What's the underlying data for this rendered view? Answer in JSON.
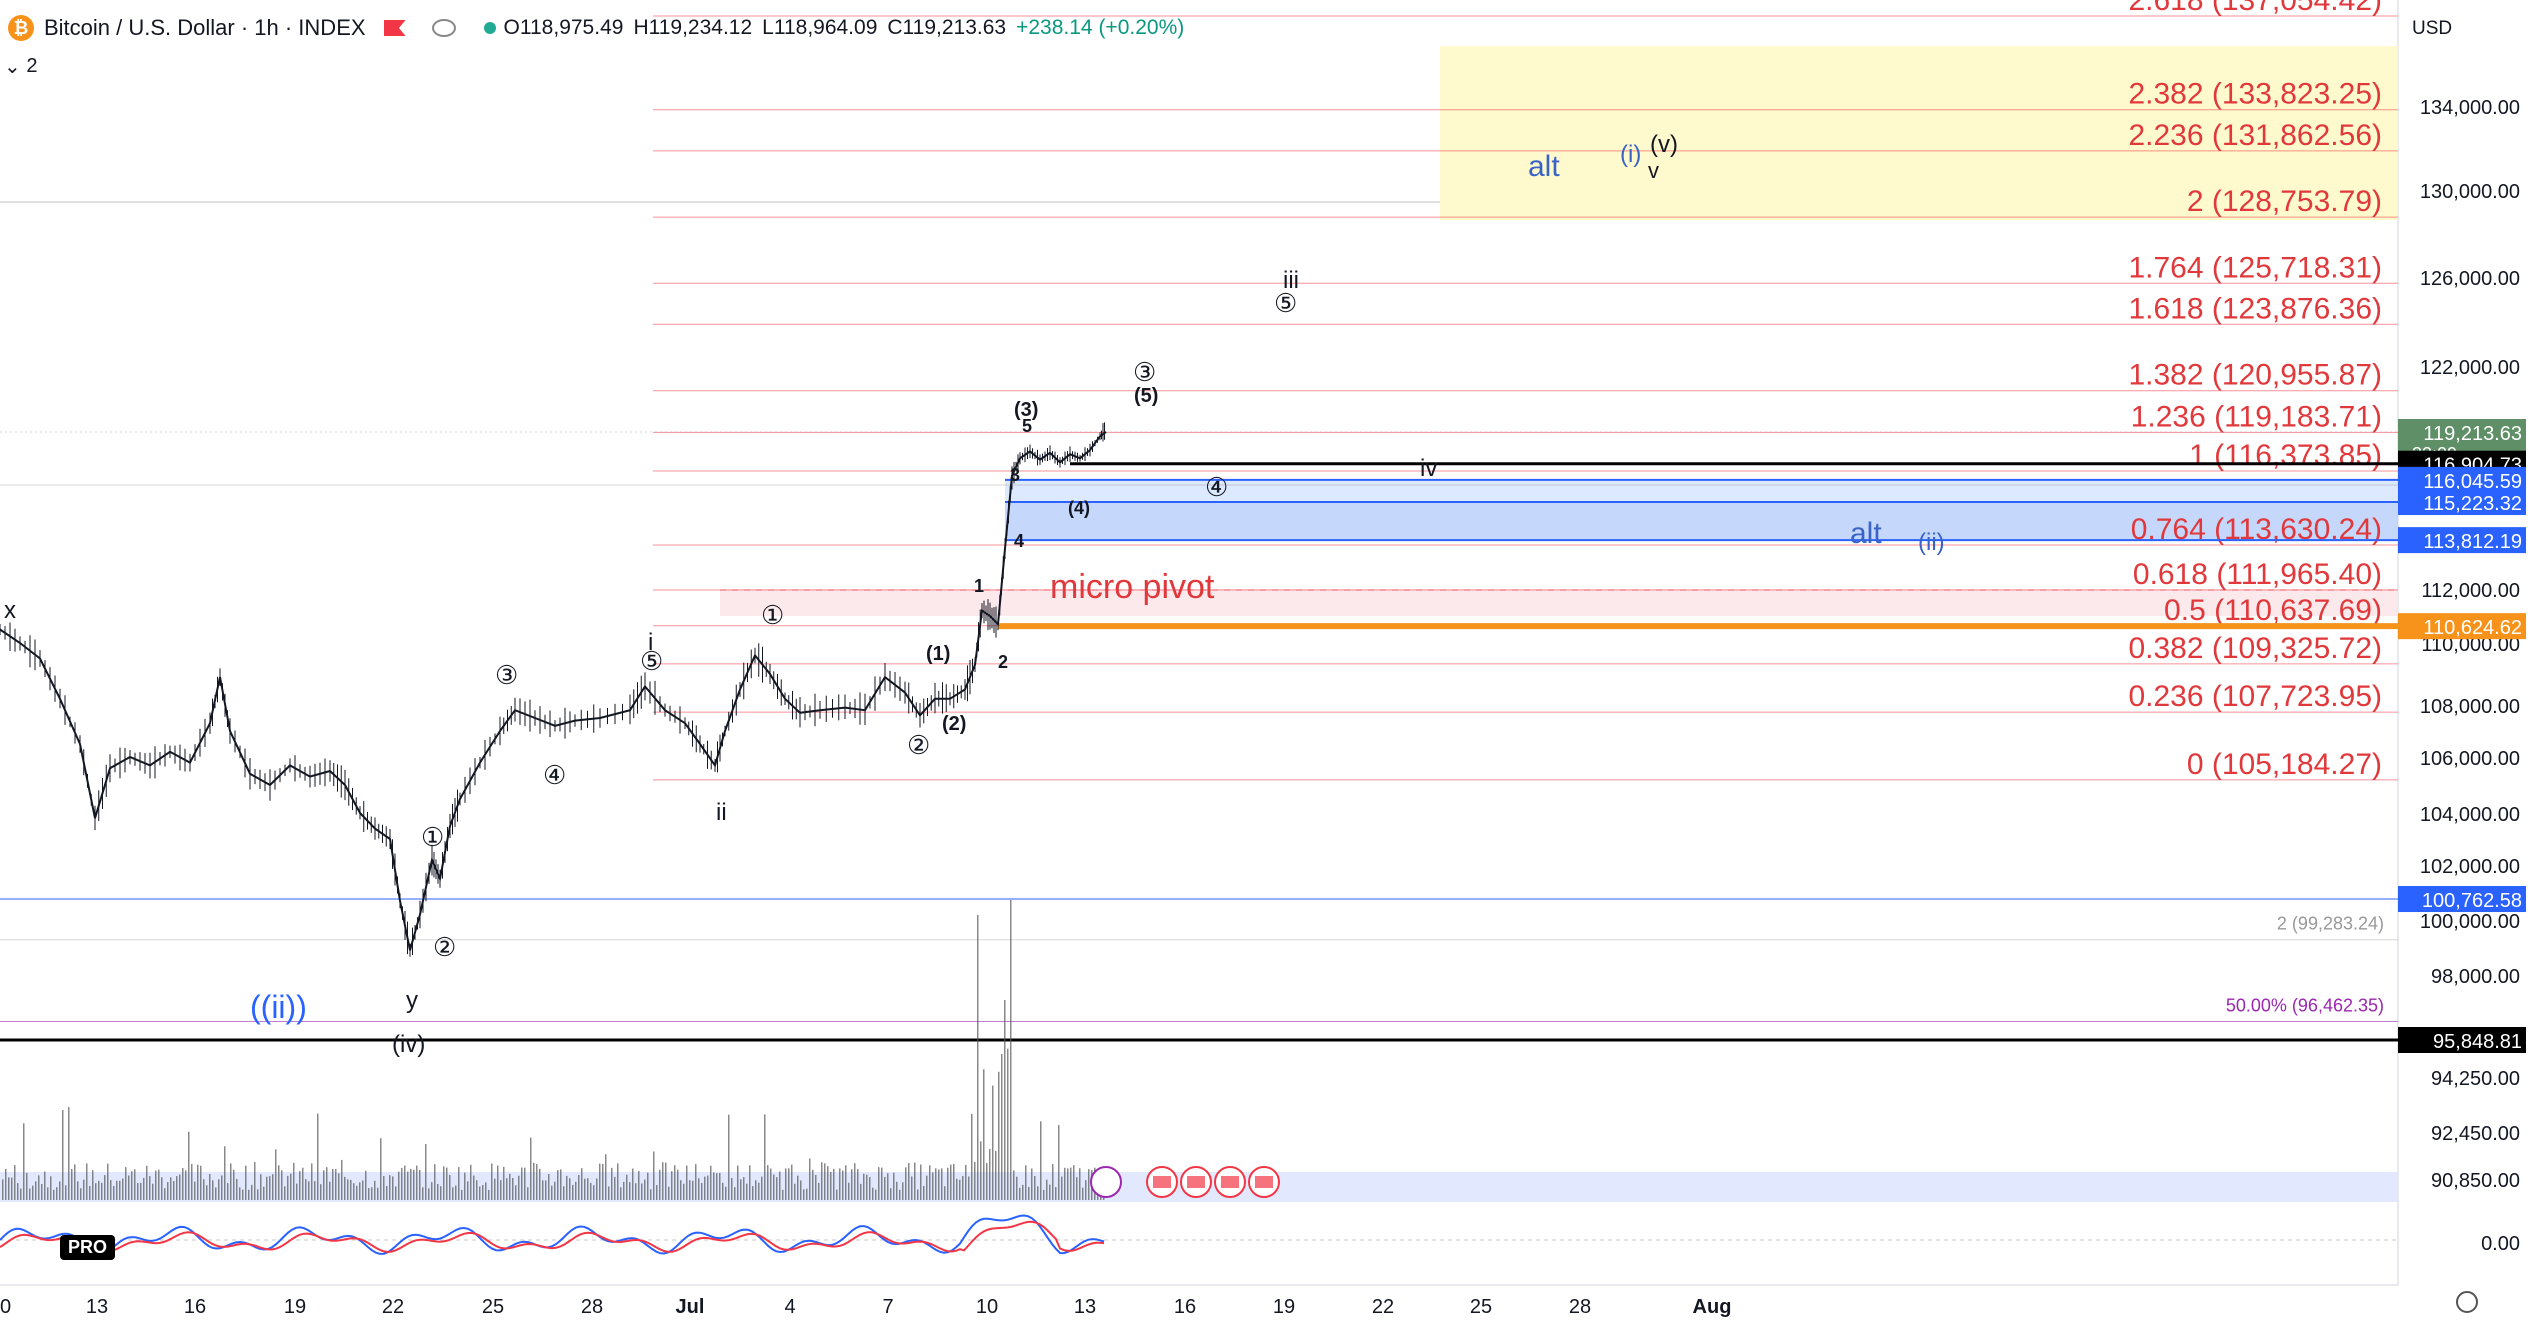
{
  "header": {
    "symbol": "Bitcoin / U.S. Dollar · 1h · INDEX",
    "open": "O118,975.49",
    "high": "H119,234.12",
    "low": "L118,964.09",
    "close": "C119,213.63",
    "change": "+238.14 (+0.20%)",
    "indicator_count": "2",
    "currency": "USD",
    "badge": "PRO"
  },
  "colors": {
    "fib_line": "#f23645",
    "fib_text": "#e0383b",
    "wave_blue": "#2962ff",
    "alt_blue": "#3a63c8",
    "zone_yellow": "#fff9c4",
    "zone_blue": "#cfe0ff",
    "zone_pink": "#fbe3e6",
    "orange": "#f7931a",
    "candle": "#131722",
    "volume": "#555555",
    "price_tag_green": "#5f8f66",
    "price_tag_blue": "#2962ff",
    "price_tag_orange": "#f7931a",
    "price_tag_black": "#000000"
  },
  "chart_data": {
    "type": "candlestick",
    "interval": "1h",
    "y_axis": {
      "ticks": [
        {
          "label": "134,000.00",
          "value": 134000
        },
        {
          "label": "130,000.00",
          "value": 130000
        },
        {
          "label": "126,000.00",
          "value": 126000
        },
        {
          "label": "122,000.00",
          "value": 122000
        },
        {
          "label": "112,000.00",
          "value": 112000
        },
        {
          "label": "110,000.00",
          "value": 110000
        },
        {
          "label": "108,000.00",
          "value": 108000
        },
        {
          "label": "106,000.00",
          "value": 106000
        },
        {
          "label": "104,000.00",
          "value": 104000
        },
        {
          "label": "102,000.00",
          "value": 102000
        },
        {
          "label": "100,000.00",
          "value": 100000
        },
        {
          "label": "98,000.00",
          "value": 98000
        },
        {
          "label": "94,250.00",
          "value": 94250
        },
        {
          "label": "92,450.00",
          "value": 92450
        },
        {
          "label": "90,850.00",
          "value": 90850
        },
        {
          "label": "0.00",
          "value": 0
        }
      ],
      "price_tags": [
        {
          "label": "119,213.63",
          "sub": "33:09",
          "value": 119213.63,
          "color": "#5f8f66"
        },
        {
          "label": "116,904.73",
          "value": 116904.73,
          "color": "#000000"
        },
        {
          "label": "116,045.59",
          "value": 116045.59,
          "color": "#2962ff"
        },
        {
          "label": "115,223.32",
          "value": 115223.32,
          "color": "#2962ff"
        },
        {
          "label": "113,812.19",
          "value": 113812.19,
          "color": "#2962ff"
        },
        {
          "label": "110,624.62",
          "value": 110624.62,
          "color": "#f7931a"
        },
        {
          "label": "100,762.58",
          "value": 100762.58,
          "color": "#2962ff"
        },
        {
          "label": "95,848.81",
          "value": 95848.81,
          "color": "#000000"
        }
      ]
    },
    "x_axis": {
      "ticks": [
        "0",
        "13",
        "16",
        "19",
        "22",
        "25",
        "28",
        "Jul",
        "4",
        "7",
        "10",
        "13",
        "16",
        "19",
        "22",
        "25",
        "28",
        "Aug"
      ]
    },
    "fib_levels": [
      {
        "label": "2.618 (137,054.42)",
        "value": 137054.42
      },
      {
        "label": "2.382 (133,823.25)",
        "value": 133823.25
      },
      {
        "label": "2.236 (131,862.56)",
        "value": 131862.56
      },
      {
        "label": "2 (128,753.79)",
        "value": 128753.79
      },
      {
        "label": "1.764 (125,718.31)",
        "value": 125718.31
      },
      {
        "label": "1.618 (123,876.36)",
        "value": 123876.36
      },
      {
        "label": "1.382 (120,955.87)",
        "value": 120955.87
      },
      {
        "label": "1.236 (119,183.71)",
        "value": 119183.71
      },
      {
        "label": "1 (116,373.85)",
        "value": 116373.85
      },
      {
        "label": "0.764 (113,630.24)",
        "value": 113630.24
      },
      {
        "label": "0.618 (111,965.40)",
        "value": 111965.4
      },
      {
        "label": "0.5 (110,637.69)",
        "value": 110637.69
      },
      {
        "label": "0.382 (109,325.72)",
        "value": 109325.72
      },
      {
        "label": "0.236 (107,723.95)",
        "value": 107723.95
      },
      {
        "label": "0 (105,184.27)",
        "value": 105184.27
      }
    ],
    "secondary_levels": [
      {
        "label": "2 (99,283.24)",
        "value": 99283.24
      },
      {
        "label": "50.00% (96,462.35)",
        "value": 96462.35
      }
    ],
    "annotations": [
      "micro pivot",
      "alt",
      "(i)",
      "(v)",
      "v",
      "iii",
      "iv",
      "(ii)",
      "((ii))",
      "x",
      "y",
      "(iv)",
      "i",
      "ii",
      "(1)",
      "(2)",
      "(3)",
      "(4)",
      "(5)",
      "1",
      "2",
      "3",
      "4",
      "5",
      "①",
      "②",
      "③",
      "④",
      "⑤"
    ],
    "series": [
      {
        "kind": "price",
        "points": [
          {
            "x": 0,
            "y": 110500
          },
          {
            "x": 20,
            "y": 110000
          },
          {
            "x": 40,
            "y": 109500
          },
          {
            "x": 60,
            "y": 108200
          },
          {
            "x": 80,
            "y": 106500
          },
          {
            "x": 95,
            "y": 103800
          },
          {
            "x": 110,
            "y": 105600
          },
          {
            "x": 130,
            "y": 106000
          },
          {
            "x": 150,
            "y": 105700
          },
          {
            "x": 170,
            "y": 106200
          },
          {
            "x": 190,
            "y": 105800
          },
          {
            "x": 210,
            "y": 107300
          },
          {
            "x": 220,
            "y": 108900
          },
          {
            "x": 230,
            "y": 107000
          },
          {
            "x": 250,
            "y": 105400
          },
          {
            "x": 270,
            "y": 105000
          },
          {
            "x": 290,
            "y": 105700
          },
          {
            "x": 310,
            "y": 105300
          },
          {
            "x": 330,
            "y": 105500
          },
          {
            "x": 345,
            "y": 105000
          },
          {
            "x": 360,
            "y": 104000
          },
          {
            "x": 375,
            "y": 103400
          },
          {
            "x": 390,
            "y": 103000
          },
          {
            "x": 400,
            "y": 100700
          },
          {
            "x": 410,
            "y": 98900
          },
          {
            "x": 420,
            "y": 100200
          },
          {
            "x": 432,
            "y": 102200
          },
          {
            "x": 440,
            "y": 101500
          },
          {
            "x": 450,
            "y": 103500
          },
          {
            "x": 460,
            "y": 104500
          },
          {
            "x": 480,
            "y": 105800
          },
          {
            "x": 500,
            "y": 107000
          },
          {
            "x": 515,
            "y": 107800
          },
          {
            "x": 535,
            "y": 107500
          },
          {
            "x": 555,
            "y": 107200
          },
          {
            "x": 575,
            "y": 107400
          },
          {
            "x": 600,
            "y": 107500
          },
          {
            "x": 630,
            "y": 107800
          },
          {
            "x": 645,
            "y": 108600
          },
          {
            "x": 665,
            "y": 107800
          },
          {
            "x": 685,
            "y": 107300
          },
          {
            "x": 700,
            "y": 106500
          },
          {
            "x": 715,
            "y": 105700
          },
          {
            "x": 725,
            "y": 107000
          },
          {
            "x": 740,
            "y": 108500
          },
          {
            "x": 755,
            "y": 109600
          },
          {
            "x": 770,
            "y": 109000
          },
          {
            "x": 785,
            "y": 108200
          },
          {
            "x": 800,
            "y": 107700
          },
          {
            "x": 820,
            "y": 107800
          },
          {
            "x": 845,
            "y": 107900
          },
          {
            "x": 865,
            "y": 107800
          },
          {
            "x": 885,
            "y": 108900
          },
          {
            "x": 905,
            "y": 108400
          },
          {
            "x": 920,
            "y": 107600
          },
          {
            "x": 935,
            "y": 108200
          },
          {
            "x": 950,
            "y": 108200
          },
          {
            "x": 965,
            "y": 108500
          },
          {
            "x": 975,
            "y": 109300
          },
          {
            "x": 982,
            "y": 111200
          },
          {
            "x": 990,
            "y": 111000
          },
          {
            "x": 998,
            "y": 110700
          },
          {
            "x": 1005,
            "y": 113500
          },
          {
            "x": 1012,
            "y": 116200
          },
          {
            "x": 1020,
            "y": 117300
          },
          {
            "x": 1030,
            "y": 117800
          },
          {
            "x": 1040,
            "y": 117200
          },
          {
            "x": 1050,
            "y": 117700
          },
          {
            "x": 1060,
            "y": 117000
          },
          {
            "x": 1070,
            "y": 117600
          },
          {
            "x": 1080,
            "y": 117300
          },
          {
            "x": 1090,
            "y": 117900
          },
          {
            "x": 1100,
            "y": 118900
          },
          {
            "x": 1106,
            "y": 119213
          }
        ]
      }
    ]
  }
}
